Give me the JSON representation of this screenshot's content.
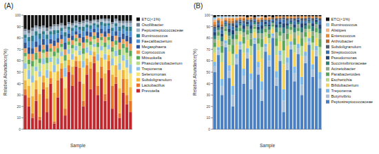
{
  "chart_data": [
    {
      "type": "bar",
      "title": "(A)",
      "x_label": "Sample",
      "y_label": "Relative Abundance(%)",
      "stacked": true,
      "legend": "right",
      "ylim": [
        0,
        100
      ],
      "yticks": [
        0,
        10,
        20,
        30,
        40,
        50,
        60,
        70,
        80,
        90,
        100
      ],
      "tick_labels": "y",
      "categories": [
        null,
        null,
        null,
        null,
        null,
        null,
        null,
        null,
        null,
        null,
        null,
        null,
        null,
        null,
        null,
        null,
        null,
        null,
        null,
        null,
        null,
        null,
        null,
        null,
        null,
        null,
        null,
        null,
        null,
        null
      ],
      "series": [
        {
          "name": "Prevotella",
          "color": "#c0282d",
          "values": [
            30,
            20,
            10,
            25,
            8,
            35,
            15,
            40,
            5,
            28,
            45,
            12,
            50,
            38,
            55,
            42,
            20,
            48,
            35,
            58,
            30,
            45,
            25,
            52,
            18,
            40,
            10,
            32,
            22,
            15
          ]
        },
        {
          "name": "Lactobacillus",
          "color": "#e8742a",
          "values": [
            5,
            8,
            4,
            10,
            3,
            6,
            12,
            5,
            2,
            15,
            8,
            6,
            6,
            10,
            5,
            12,
            5,
            8,
            18,
            6,
            8,
            10,
            6,
            8,
            20,
            6,
            4,
            12,
            8,
            10
          ]
        },
        {
          "name": "Subdoligranulum",
          "color": "#f3b23a",
          "values": [
            8,
            10,
            15,
            8,
            20,
            6,
            10,
            6,
            25,
            8,
            5,
            18,
            5,
            7,
            4,
            6,
            15,
            6,
            6,
            4,
            12,
            8,
            18,
            5,
            10,
            10,
            22,
            8,
            14,
            12
          ]
        },
        {
          "name": "Selenomonas",
          "color": "#f7e27a",
          "values": [
            10,
            6,
            12,
            8,
            15,
            10,
            8,
            8,
            18,
            6,
            6,
            10,
            5,
            6,
            5,
            5,
            14,
            5,
            6,
            4,
            10,
            6,
            12,
            5,
            8,
            8,
            16,
            8,
            10,
            12
          ]
        },
        {
          "name": "Treponema",
          "color": "#8fc3e6",
          "values": [
            5,
            8,
            6,
            4,
            5,
            5,
            7,
            4,
            6,
            5,
            4,
            8,
            4,
            5,
            4,
            4,
            6,
            5,
            4,
            3,
            6,
            4,
            5,
            4,
            6,
            5,
            6,
            5,
            7,
            8
          ]
        },
        {
          "name": "Phascolarctobacterium",
          "color": "#b9dc8a",
          "values": [
            6,
            5,
            8,
            6,
            7,
            5,
            6,
            5,
            8,
            5,
            4,
            6,
            4,
            5,
            4,
            4,
            6,
            4,
            5,
            4,
            6,
            5,
            6,
            4,
            6,
            5,
            7,
            6,
            6,
            7
          ]
        },
        {
          "name": "Mitsuokella",
          "color": "#5aa85a",
          "values": [
            3,
            4,
            5,
            6,
            4,
            3,
            5,
            3,
            4,
            4,
            3,
            5,
            3,
            3,
            3,
            3,
            5,
            3,
            3,
            3,
            4,
            3,
            4,
            3,
            4,
            4,
            5,
            4,
            5,
            5
          ]
        },
        {
          "name": "Coprococcus",
          "color": "#e99a5b",
          "values": [
            4,
            5,
            6,
            5,
            6,
            4,
            5,
            4,
            5,
            5,
            4,
            5,
            3,
            4,
            3,
            4,
            5,
            3,
            4,
            3,
            4,
            3,
            5,
            3,
            5,
            4,
            6,
            4,
            5,
            6
          ]
        },
        {
          "name": "Megasphaera",
          "color": "#2f5597",
          "values": [
            5,
            6,
            5,
            5,
            6,
            5,
            6,
            4,
            5,
            4,
            4,
            6,
            4,
            4,
            3,
            4,
            5,
            4,
            4,
            3,
            5,
            4,
            5,
            4,
            5,
            4,
            5,
            5,
            5,
            6
          ]
        },
        {
          "name": "Faecalibacterium",
          "color": "#4e8fd0",
          "values": [
            4,
            5,
            6,
            5,
            5,
            4,
            5,
            4,
            5,
            4,
            3,
            5,
            3,
            4,
            3,
            3,
            5,
            3,
            3,
            3,
            4,
            3,
            4,
            3,
            4,
            4,
            5,
            4,
            4,
            5
          ]
        },
        {
          "name": "Ruminococcus",
          "color": "#2e7d8c",
          "values": [
            3,
            4,
            5,
            4,
            5,
            3,
            4,
            3,
            4,
            3,
            3,
            4,
            3,
            3,
            2,
            3,
            4,
            3,
            3,
            2,
            3,
            3,
            3,
            2,
            3,
            3,
            4,
            3,
            4,
            4
          ]
        },
        {
          "name": "Peptostreptococcaceae",
          "color": "#9fb4c8",
          "values": [
            3,
            3,
            4,
            3,
            4,
            3,
            3,
            2,
            3,
            3,
            2,
            3,
            2,
            2,
            2,
            2,
            3,
            2,
            2,
            2,
            2,
            2,
            2,
            2,
            3,
            2,
            3,
            2,
            3,
            3
          ]
        },
        {
          "name": "Oscillibacter",
          "color": "#6f7f8f",
          "values": [
            2,
            3,
            3,
            2,
            2,
            2,
            3,
            2,
            2,
            2,
            2,
            3,
            2,
            2,
            2,
            2,
            2,
            2,
            2,
            1,
            2,
            1,
            2,
            2,
            2,
            2,
            2,
            2,
            2,
            2
          ]
        },
        {
          "name": "ETC(<1%)",
          "color": "#111111",
          "values": [
            12,
            13,
            11,
            9,
            10,
            9,
            11,
            10,
            8,
            8,
            7,
            9,
            6,
            7,
            5,
            6,
            5,
            4,
            5,
            4,
            4,
            3,
            3,
            3,
            6,
            3,
            5,
            5,
            5,
            5
          ]
        }
      ]
    },
    {
      "type": "bar",
      "title": "(B)",
      "x_label": "Sample",
      "y_label": "Relative Abundance(%)",
      "stacked": true,
      "legend": "right",
      "ylim": [
        0,
        100
      ],
      "yticks": [
        0,
        10,
        20,
        30,
        40,
        50,
        60,
        70,
        80,
        90,
        100
      ],
      "tick_labels": "y",
      "categories": [
        null,
        null,
        null,
        null,
        null,
        null,
        null,
        null,
        null,
        null,
        null,
        null,
        null,
        null,
        null,
        null,
        null,
        null,
        null,
        null,
        null,
        null,
        null,
        null,
        null,
        null,
        null,
        null,
        null,
        null
      ],
      "series": [
        {
          "name": "Peptostreptococcaceae",
          "color": "#4a7fc1",
          "values": [
            50,
            65,
            30,
            72,
            45,
            20,
            57,
            70,
            40,
            62,
            35,
            75,
            48,
            25,
            68,
            55,
            80,
            38,
            60,
            15,
            52,
            70,
            42,
            66,
            30,
            58,
            74,
            46,
            64,
            36
          ]
        },
        {
          "name": "Butyrivibrio",
          "color": "#a9bfd8",
          "values": [
            5,
            4,
            8,
            3,
            6,
            10,
            5,
            4,
            7,
            5,
            8,
            3,
            6,
            9,
            4,
            5,
            2,
            7,
            5,
            10,
            6,
            4,
            7,
            5,
            9,
            6,
            3,
            6,
            5,
            8
          ]
        },
        {
          "name": "Treponema",
          "color": "#7db9e8",
          "values": [
            4,
            3,
            6,
            3,
            5,
            8,
            4,
            3,
            6,
            4,
            6,
            2,
            5,
            8,
            3,
            5,
            2,
            6,
            4,
            10,
            5,
            3,
            6,
            4,
            7,
            4,
            3,
            5,
            4,
            6
          ]
        },
        {
          "name": "Bifidobacterium",
          "color": "#f4d35e",
          "values": [
            8,
            6,
            15,
            5,
            12,
            18,
            8,
            6,
            14,
            7,
            16,
            5,
            10,
            20,
            6,
            10,
            4,
            14,
            8,
            22,
            10,
            6,
            12,
            7,
            18,
            8,
            5,
            12,
            7,
            14
          ]
        },
        {
          "name": "Escherichia",
          "color": "#b5d98b",
          "values": [
            5,
            4,
            8,
            3,
            6,
            10,
            5,
            3,
            8,
            5,
            8,
            3,
            6,
            10,
            4,
            5,
            2,
            8,
            5,
            12,
            6,
            4,
            7,
            4,
            9,
            5,
            3,
            7,
            5,
            8
          ]
        },
        {
          "name": "Parabacteroides",
          "color": "#5ca65c",
          "values": [
            4,
            3,
            6,
            2,
            5,
            8,
            4,
            3,
            6,
            4,
            6,
            2,
            5,
            7,
            3,
            4,
            2,
            7,
            4,
            9,
            5,
            3,
            6,
            3,
            7,
            4,
            3,
            6,
            4,
            7
          ]
        },
        {
          "name": "Acinetobacter",
          "color": "#8fa88a",
          "values": [
            3,
            2,
            4,
            2,
            3,
            5,
            3,
            2,
            4,
            3,
            5,
            2,
            4,
            5,
            2,
            3,
            1,
            5,
            3,
            6,
            4,
            2,
            5,
            3,
            5,
            3,
            2,
            4,
            3,
            5
          ]
        },
        {
          "name": "Succinivibrionaceae",
          "color": "#2f7f7a",
          "values": [
            3,
            2,
            4,
            2,
            3,
            4,
            3,
            2,
            3,
            2,
            4,
            2,
            3,
            4,
            2,
            3,
            1,
            4,
            3,
            5,
            3,
            2,
            4,
            2,
            4,
            3,
            2,
            4,
            2,
            4
          ]
        },
        {
          "name": "Pseudomonas",
          "color": "#24457a",
          "values": [
            3,
            2,
            3,
            1,
            3,
            4,
            2,
            1,
            3,
            2,
            3,
            1,
            3,
            3,
            2,
            2,
            1,
            3,
            2,
            4,
            2,
            1,
            3,
            2,
            4,
            2,
            1,
            3,
            2,
            4
          ]
        },
        {
          "name": "Streptococcus",
          "color": "#3a6fb0",
          "values": [
            3,
            2,
            3,
            1,
            3,
            3,
            2,
            1,
            2,
            1,
            3,
            1,
            2,
            3,
            1,
            2,
            1,
            3,
            2,
            3,
            2,
            1,
            3,
            1,
            2,
            2,
            1,
            2,
            1,
            3
          ]
        },
        {
          "name": "Subdoligranulum",
          "color": "#4d5d6e",
          "values": [
            2,
            2,
            3,
            1,
            2,
            3,
            2,
            1,
            2,
            1,
            2,
            1,
            2,
            2,
            1,
            2,
            1,
            2,
            1,
            2,
            2,
            1,
            2,
            1,
            2,
            2,
            1,
            2,
            1,
            2
          ]
        },
        {
          "name": "Arthrobacter",
          "color": "#b5692e",
          "values": [
            2,
            1,
            2,
            1,
            2,
            2,
            1,
            1,
            2,
            1,
            1,
            1,
            2,
            1,
            1,
            1,
            1,
            1,
            1,
            1,
            1,
            1,
            1,
            1,
            1,
            1,
            1,
            1,
            1,
            1
          ]
        },
        {
          "name": "Enterococcus",
          "color": "#ee8a2f",
          "values": [
            2,
            1,
            3,
            1,
            2,
            2,
            1,
            1,
            1,
            1,
            1,
            0,
            1,
            1,
            1,
            1,
            0,
            1,
            1,
            0,
            1,
            1,
            1,
            0,
            1,
            1,
            0,
            1,
            0,
            1
          ]
        },
        {
          "name": "Alistipes",
          "color": "#f2b483",
          "values": [
            2,
            1,
            2,
            1,
            1,
            1,
            1,
            1,
            1,
            0,
            1,
            0,
            1,
            1,
            0,
            1,
            0,
            0,
            0,
            0,
            0,
            0,
            0,
            0,
            0,
            0,
            0,
            0,
            0,
            0
          ]
        },
        {
          "name": "Ruminococcus",
          "color": "#9ccbe8",
          "values": [
            2,
            1,
            2,
            1,
            1,
            1,
            1,
            0,
            0,
            0,
            0,
            0,
            1,
            0,
            0,
            0,
            0,
            0,
            0,
            0,
            0,
            0,
            0,
            0,
            0,
            0,
            0,
            0,
            0,
            0
          ]
        },
        {
          "name": "ETC(<1%)",
          "color": "#111111",
          "values": [
            2,
            1,
            1,
            1,
            1,
            1,
            1,
            1,
            1,
            2,
            1,
            2,
            1,
            1,
            2,
            1,
            2,
            1,
            1,
            1,
            1,
            1,
            1,
            1,
            1,
            1,
            1,
            1,
            1,
            1
          ]
        }
      ]
    }
  ]
}
